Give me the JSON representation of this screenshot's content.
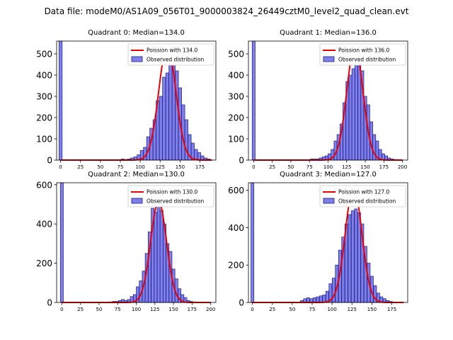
{
  "figure_title": "Data file: modeM0/AS1A09_056T01_9000003824_26449cztM0_level2_quad_clean.evt",
  "chart_data": [
    {
      "type": "bar",
      "title": "Quadrant 0: Median=134.0",
      "xlim": [
        -5,
        195
      ],
      "ylim": [
        0,
        560
      ],
      "xticks": [
        0,
        25,
        50,
        75,
        100,
        125,
        150,
        175
      ],
      "yticks": [
        0,
        100,
        200,
        300,
        400,
        500
      ],
      "legend": {
        "location": "top-right",
        "line_label": "Poission with 134.0",
        "bar_label": "Observed distribution"
      },
      "histogram": {
        "bin_width": 3.9,
        "bins": [
          [
            0,
            560
          ],
          [
            78,
            5
          ],
          [
            82,
            3
          ],
          [
            86,
            5
          ],
          [
            90,
            10
          ],
          [
            94,
            15
          ],
          [
            98,
            25
          ],
          [
            102,
            45
          ],
          [
            106,
            60
          ],
          [
            110,
            110
          ],
          [
            114,
            150
          ],
          [
            118,
            190
          ],
          [
            122,
            280
          ],
          [
            126,
            300
          ],
          [
            130,
            390
          ],
          [
            134,
            410
          ],
          [
            138,
            500
          ],
          [
            142,
            460
          ],
          [
            146,
            420
          ],
          [
            150,
            340
          ],
          [
            154,
            260
          ],
          [
            158,
            190
          ],
          [
            162,
            120
          ],
          [
            166,
            80
          ],
          [
            170,
            50
          ],
          [
            174,
            35
          ],
          [
            178,
            20
          ],
          [
            182,
            10
          ],
          [
            186,
            5
          ]
        ]
      },
      "poisson": {
        "label": "Poission with 134.0",
        "mean": 134.0,
        "peak": 535,
        "sigma": 10.8,
        "x_range": [
          0,
          190
        ]
      }
    },
    {
      "type": "bar",
      "title": "Quadrant 1: Median=136.0",
      "xlim": [
        -7,
        207
      ],
      "ylim": [
        0,
        560
      ],
      "xticks": [
        0,
        25,
        50,
        75,
        100,
        125,
        150,
        175,
        200
      ],
      "yticks": [
        0,
        100,
        200,
        300,
        400,
        500
      ],
      "legend": {
        "location": "top-right",
        "line_label": "Poission with 136.0",
        "bar_label": "Observed distribution"
      },
      "histogram": {
        "bin_width": 4.0,
        "bins": [
          [
            0,
            560
          ],
          [
            78,
            5
          ],
          [
            82,
            5
          ],
          [
            86,
            5
          ],
          [
            90,
            10
          ],
          [
            94,
            15
          ],
          [
            98,
            20
          ],
          [
            102,
            30
          ],
          [
            106,
            50
          ],
          [
            110,
            90
          ],
          [
            114,
            120
          ],
          [
            118,
            170
          ],
          [
            122,
            270
          ],
          [
            126,
            370
          ],
          [
            130,
            400
          ],
          [
            134,
            430
          ],
          [
            138,
            510
          ],
          [
            142,
            450
          ],
          [
            146,
            420
          ],
          [
            150,
            300
          ],
          [
            154,
            260
          ],
          [
            158,
            180
          ],
          [
            162,
            120
          ],
          [
            166,
            90
          ],
          [
            170,
            50
          ],
          [
            174,
            30
          ],
          [
            178,
            20
          ],
          [
            182,
            10
          ],
          [
            186,
            5
          ],
          [
            190,
            3
          ],
          [
            194,
            2
          ]
        ]
      },
      "poisson": {
        "label": "Poission with 136.0",
        "mean": 136.0,
        "peak": 535,
        "sigma": 10.9,
        "x_range": [
          0,
          200
        ]
      }
    },
    {
      "type": "bar",
      "title": "Quadrant 2: Median=130.0",
      "xlim": [
        -7,
        207
      ],
      "ylim": [
        0,
        610
      ],
      "xticks": [
        0,
        25,
        50,
        75,
        100,
        125,
        150,
        175,
        200
      ],
      "yticks": [
        0,
        200,
        400,
        600
      ],
      "legend": {
        "location": "top-right",
        "line_label": "Poission with 130.0",
        "bar_label": "Observed distribution"
      },
      "histogram": {
        "bin_width": 4.0,
        "bins": [
          [
            0,
            610
          ],
          [
            66,
            3
          ],
          [
            70,
            5
          ],
          [
            74,
            5
          ],
          [
            78,
            10
          ],
          [
            82,
            15
          ],
          [
            86,
            10
          ],
          [
            90,
            15
          ],
          [
            94,
            30
          ],
          [
            98,
            40
          ],
          [
            102,
            80
          ],
          [
            106,
            110
          ],
          [
            110,
            160
          ],
          [
            114,
            250
          ],
          [
            118,
            360
          ],
          [
            122,
            480
          ],
          [
            126,
            460
          ],
          [
            130,
            490
          ],
          [
            134,
            470
          ],
          [
            138,
            400
          ],
          [
            142,
            300
          ],
          [
            146,
            260
          ],
          [
            150,
            170
          ],
          [
            154,
            120
          ],
          [
            158,
            70
          ],
          [
            162,
            40
          ],
          [
            166,
            25
          ],
          [
            170,
            10
          ],
          [
            174,
            5
          ]
        ]
      },
      "poisson": {
        "label": "Poission with 130.0",
        "mean": 130.0,
        "peak": 515,
        "sigma": 10.7,
        "x_range": [
          0,
          200
        ]
      }
    },
    {
      "type": "bar",
      "title": "Quadrant 3: Median=127.0",
      "xlim": [
        -5,
        195
      ],
      "ylim": [
        0,
        640
      ],
      "xticks": [
        0,
        25,
        50,
        75,
        100,
        125,
        150,
        175
      ],
      "yticks": [
        0,
        200,
        400,
        600
      ],
      "legend": {
        "location": "top-right",
        "line_label": "Poission with 127.0",
        "bar_label": "Observed distribution"
      },
      "histogram": {
        "bin_width": 3.7,
        "bins": [
          [
            0,
            640
          ],
          [
            62,
            10
          ],
          [
            66,
            20
          ],
          [
            70,
            25
          ],
          [
            74,
            20
          ],
          [
            78,
            25
          ],
          [
            82,
            30
          ],
          [
            86,
            35
          ],
          [
            90,
            40
          ],
          [
            94,
            60
          ],
          [
            98,
            100
          ],
          [
            102,
            130
          ],
          [
            106,
            200
          ],
          [
            110,
            280
          ],
          [
            114,
            350
          ],
          [
            118,
            420
          ],
          [
            122,
            470
          ],
          [
            126,
            490
          ],
          [
            130,
            500
          ],
          [
            134,
            480
          ],
          [
            138,
            420
          ],
          [
            142,
            300
          ],
          [
            146,
            210
          ],
          [
            150,
            140
          ],
          [
            154,
            90
          ],
          [
            158,
            50
          ],
          [
            162,
            30
          ],
          [
            166,
            20
          ],
          [
            170,
            10
          ],
          [
            174,
            5
          ]
        ]
      },
      "poisson": {
        "label": "Poission with 127.0",
        "mean": 127.0,
        "peak": 615,
        "sigma": 10.4,
        "x_range": [
          0,
          190
        ]
      }
    }
  ]
}
